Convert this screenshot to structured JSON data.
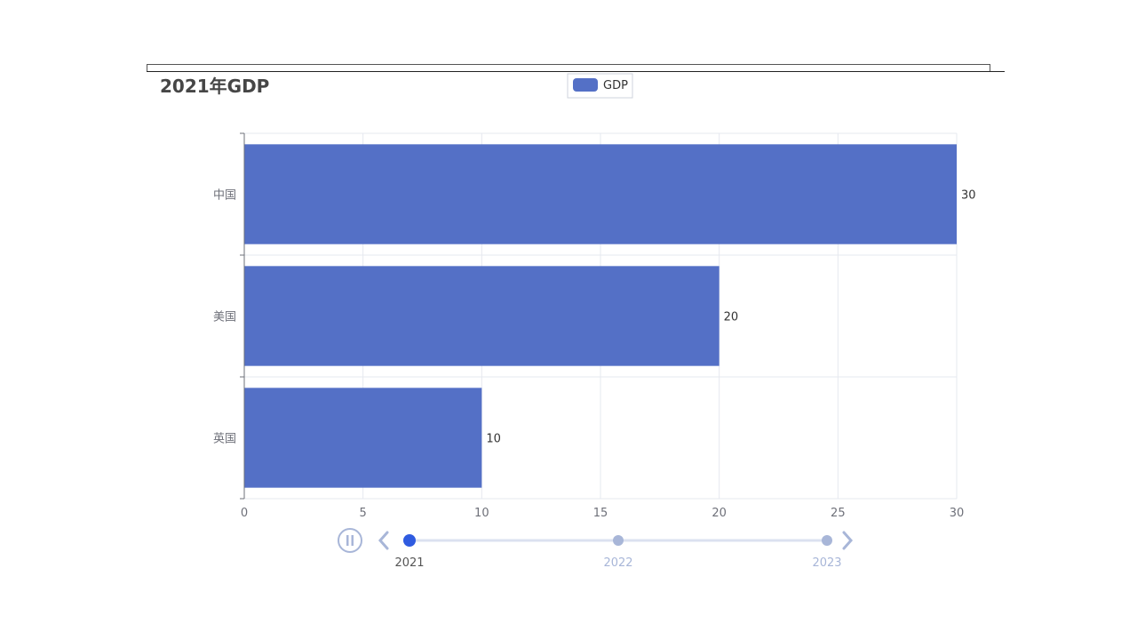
{
  "colors": {
    "bar": "#5470c6",
    "grid": "#e6e8ef",
    "axis": "#6e7079",
    "timeline_active": "#2f5be0",
    "timeline_inactive": "#a8b6d8",
    "timeline_track": "#dbe1f0"
  },
  "legend": {
    "items": [
      {
        "label": "GDP",
        "swatch": "rounded-rect"
      }
    ]
  },
  "timeline": {
    "play_icon": "pause-icon",
    "prev_icon": "chevron-left-icon",
    "next_icon": "chevron-right-icon",
    "points": [
      "2021",
      "2022",
      "2023"
    ],
    "current_index": 0
  },
  "chart_data": {
    "type": "bar",
    "orientation": "horizontal",
    "title": "2021年GDP",
    "categories": [
      "中国",
      "美国",
      "英国"
    ],
    "series": [
      {
        "name": "GDP",
        "values": [
          30,
          20,
          10
        ]
      }
    ],
    "xlim": [
      0,
      30
    ],
    "xticks": [
      "0",
      "5",
      "10",
      "15",
      "20",
      "25",
      "30"
    ],
    "data_labels": [
      "30",
      "20",
      "10"
    ],
    "grid": true,
    "legend_position": "top-center"
  }
}
